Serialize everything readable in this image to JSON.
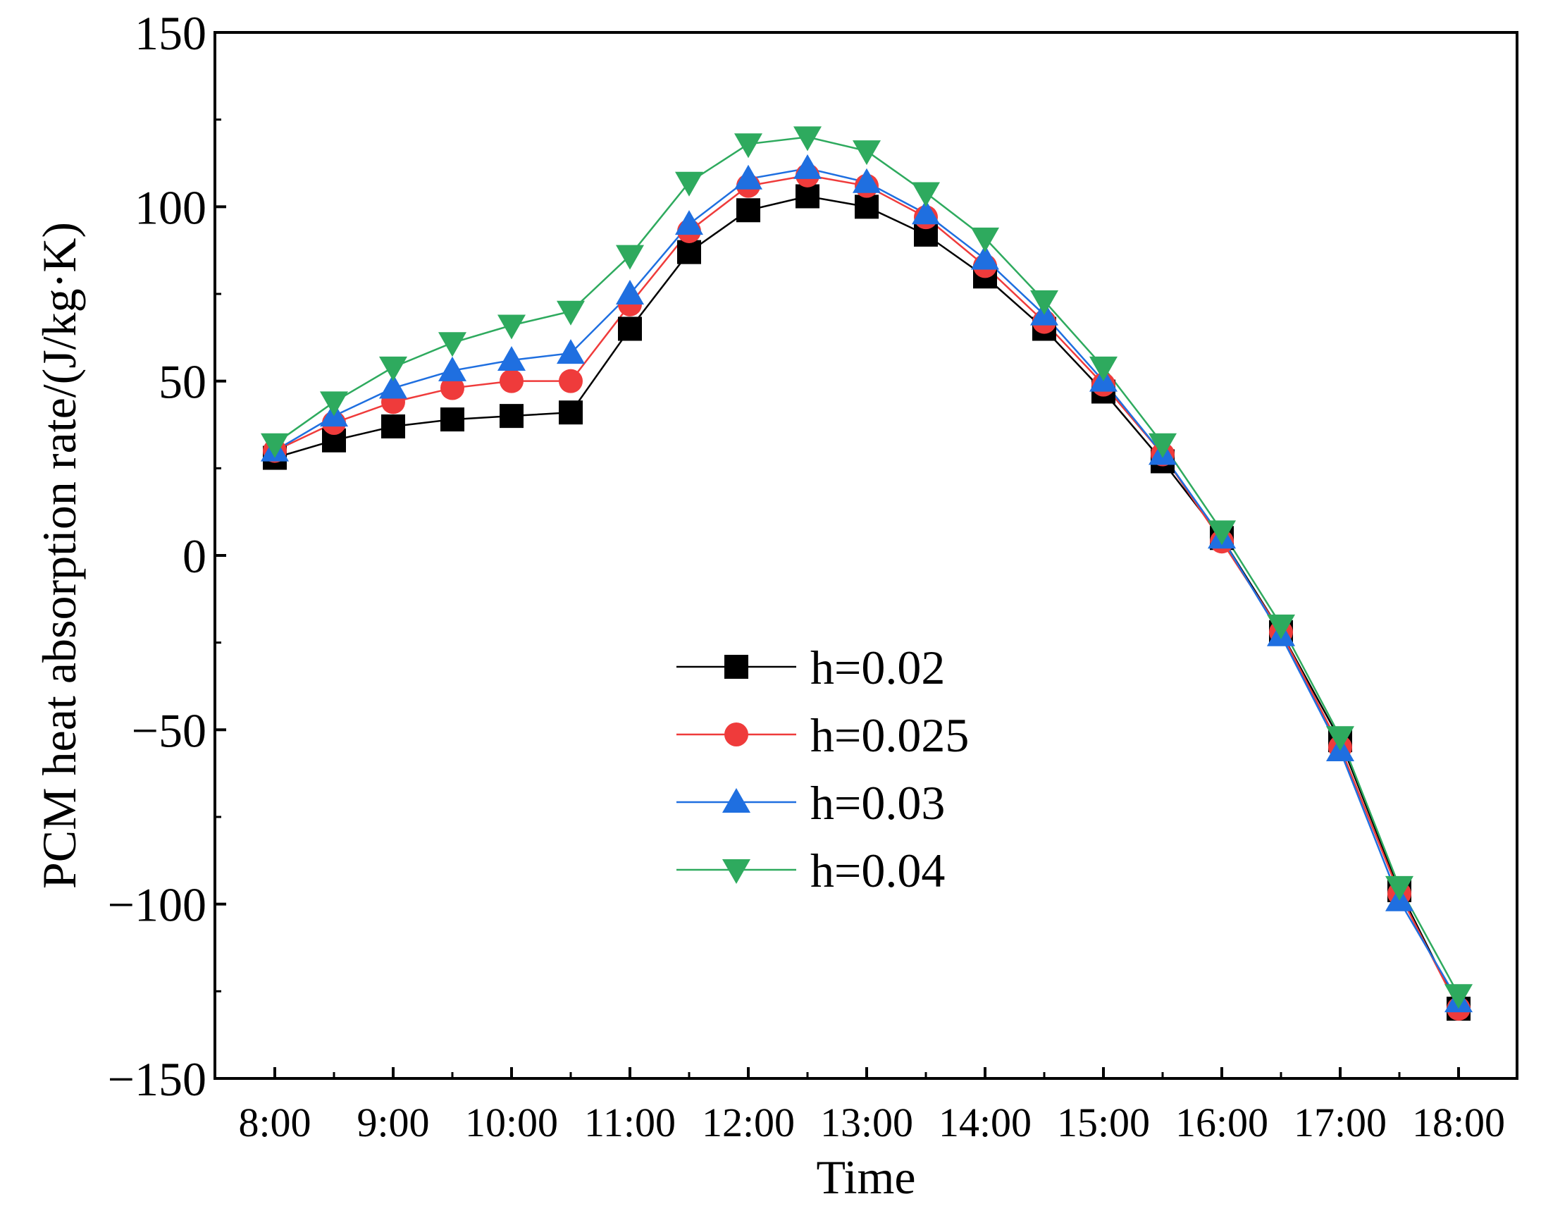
{
  "chart_data": {
    "type": "line",
    "title": "",
    "xlabel": "Time",
    "ylabel": "PCM heat absorption rate/(J/kg·K)",
    "ylim": [
      -150,
      150
    ],
    "yticks": [
      {
        "value": -150,
        "label": "−150"
      },
      {
        "value": -100,
        "label": "−100"
      },
      {
        "value": -50,
        "label": "−50"
      },
      {
        "value": 0,
        "label": "0"
      },
      {
        "value": 50,
        "label": "50"
      },
      {
        "value": 100,
        "label": "100"
      },
      {
        "value": 150,
        "label": "150"
      }
    ],
    "categories": [
      "8:00",
      "8:30",
      "9:00",
      "9:30",
      "10:00",
      "10:30",
      "11:00",
      "11:30",
      "12:00",
      "12:30",
      "13:00",
      "13:30",
      "14:00",
      "14:30",
      "15:00",
      "15:30",
      "16:00",
      "16:30",
      "17:00",
      "17:30",
      "18:00"
    ],
    "xtick_labels": [
      "8:00",
      "9:00",
      "10:00",
      "11:00",
      "12:00",
      "13:00",
      "14:00",
      "15:00",
      "16:00",
      "17:00",
      "18:00"
    ],
    "legend_position": "center",
    "series": [
      {
        "name": "h=0.02",
        "color": "#000000",
        "marker": "square",
        "values": [
          28,
          33,
          37,
          39,
          40,
          41,
          65,
          87,
          99,
          103,
          100,
          92,
          80,
          65,
          47,
          27,
          5,
          -22,
          -53,
          -96,
          -130
        ]
      },
      {
        "name": "h=0.025",
        "color": "#ef3b3b",
        "marker": "circle",
        "values": [
          30,
          38,
          44,
          48,
          50,
          50,
          72,
          93,
          106,
          109,
          106,
          97,
          83,
          67,
          49,
          29,
          4,
          -22,
          -55,
          -97,
          -130
        ]
      },
      {
        "name": "h=0.03",
        "color": "#1f6fe0",
        "marker": "triangle-up",
        "values": [
          30,
          40,
          48,
          53,
          56,
          58,
          75,
          95,
          108,
          111,
          107,
          98,
          85,
          69,
          50,
          29,
          5,
          -23,
          -56,
          -99,
          -128
        ]
      },
      {
        "name": "h=0.04",
        "color": "#2eaa5e",
        "marker": "triangle-down",
        "values": [
          32,
          44,
          54,
          61,
          66,
          70,
          86,
          107,
          118,
          120,
          116,
          104,
          91,
          73,
          54,
          32,
          7,
          -20,
          -52,
          -95,
          -126
        ]
      }
    ]
  }
}
